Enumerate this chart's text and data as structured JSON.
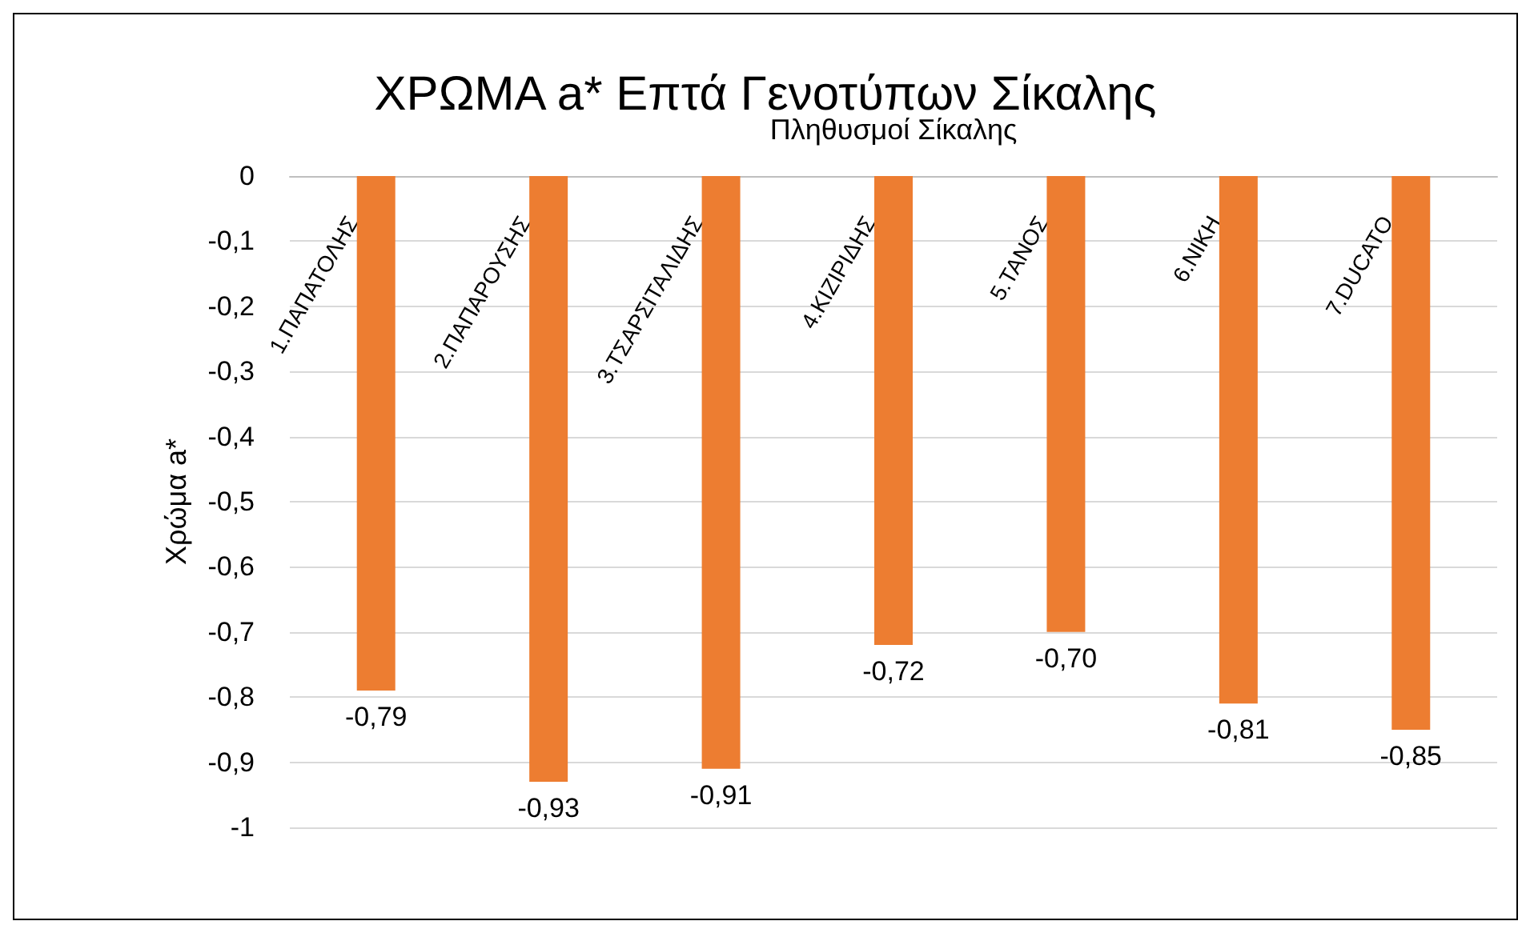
{
  "chart_data": {
    "type": "bar",
    "title": "ΧΡΩΜΑ a* Επτά Γενοτύπων Σίκαλης",
    "xlabel": "Πληθυσμοί Σίκαλης",
    "ylabel": "Χρώμα a*",
    "categories": [
      "1.ΠΑΠΑΤΟΛΗΣ",
      "2.ΠΑΠΑΡΟΥΣΗΣ",
      "3.ΤΣΑΡΣΙΤΑΛΙΔΗΣ",
      "4.ΚΙΖΙΡΙΔΗΣ",
      "5.ΤΑΝΟΣ",
      "6.ΝΙΚΗ",
      "7.DUCATO"
    ],
    "values": [
      -0.79,
      -0.93,
      -0.91,
      -0.72,
      -0.7,
      -0.81,
      -0.85
    ],
    "value_labels": [
      "-0,79",
      "-0,93",
      "-0,91",
      "-0,72",
      "-0,70",
      "-0,81",
      "-0,85"
    ],
    "color": "#ed7d31",
    "ylim": [
      -1,
      0
    ],
    "yticks": [
      {
        "value": -1,
        "label": "-1"
      },
      {
        "value": -0.9,
        "label": "-0,9"
      },
      {
        "value": -0.8,
        "label": "-0,8"
      },
      {
        "value": -0.7,
        "label": "-0,7"
      },
      {
        "value": -0.6,
        "label": "-0,6"
      },
      {
        "value": -0.5,
        "label": "-0,5"
      },
      {
        "value": -0.4,
        "label": "-0,4"
      },
      {
        "value": -0.3,
        "label": "-0,3"
      },
      {
        "value": -0.2,
        "label": "-0,2"
      },
      {
        "value": -0.1,
        "label": "-0,1"
      },
      {
        "value": 0,
        "label": "0"
      }
    ],
    "grid": true
  }
}
